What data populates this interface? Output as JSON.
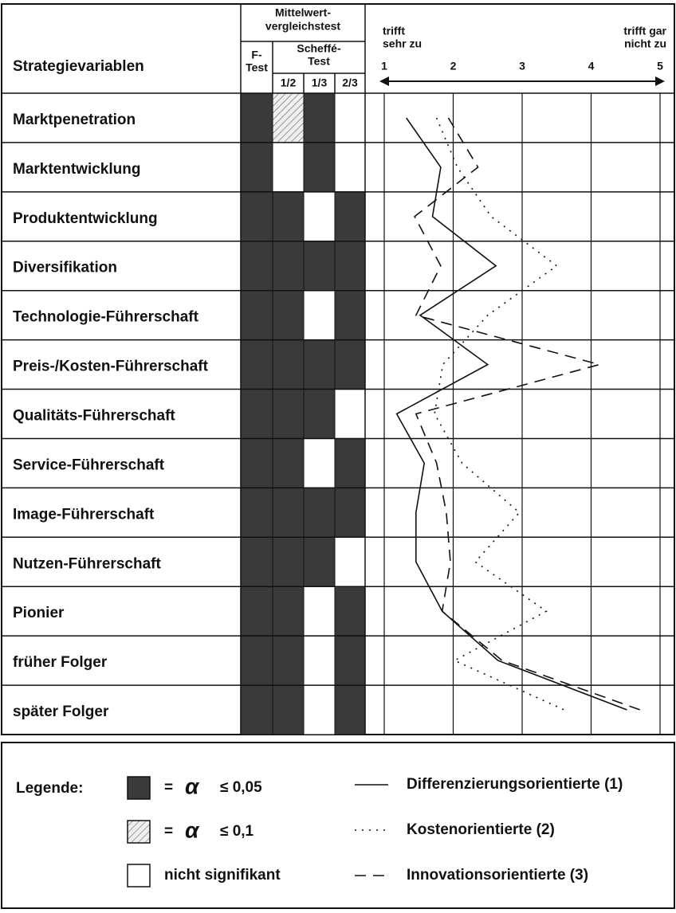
{
  "chart_data": {
    "type": "line",
    "row_header": "Strategievariablen",
    "categories": [
      "Marktpenetration",
      "Marktentwicklung",
      "Produktentwicklung",
      "Diversifikation",
      "Technologie-Führerschaft",
      "Preis-/Kosten-Führerschaft",
      "Qualitäts-Führerschaft",
      "Service-Führerschaft",
      "Image-Führerschaft",
      "Nutzen-Führerschaft",
      "Pionier",
      "früher Folger",
      "später Folger"
    ],
    "scale_left": [
      "trifft",
      "sehr zu"
    ],
    "scale_right": [
      "trifft gar",
      "nicht zu"
    ],
    "xlim": [
      1,
      5
    ],
    "xticks": [
      1,
      2,
      3,
      4,
      5
    ],
    "grid": true,
    "series": [
      {
        "name": "Differenzierungsorientierte (1)",
        "color": "#111111",
        "dash": "solid",
        "values": [
          1.32,
          1.82,
          1.7,
          2.62,
          1.52,
          2.5,
          1.18,
          1.58,
          1.46,
          1.46,
          1.84,
          2.65,
          4.52
        ]
      },
      {
        "name": "Kostenorientierte (2)",
        "color": "#111111",
        "dash": "dotted",
        "values": [
          1.76,
          2.06,
          2.55,
          3.5,
          2.5,
          1.85,
          1.73,
          2.13,
          2.96,
          2.32,
          3.35,
          2.02,
          3.61
        ]
      },
      {
        "name": "Innovationsorientierte (3)",
        "color": "#111111",
        "dash": "dashed",
        "values": [
          1.93,
          2.36,
          1.44,
          1.82,
          1.46,
          4.12,
          1.46,
          1.76,
          1.9,
          1.96,
          1.84,
          2.71,
          4.71
        ]
      }
    ]
  },
  "significance": {
    "title": [
      "Mittelwert-",
      "vergleichstest"
    ],
    "f_test": [
      "F-",
      "Test"
    ],
    "scheffe": [
      "Scheffé-",
      "Test"
    ],
    "pairs": [
      "1/2",
      "1/3",
      "2/3"
    ],
    "cells": [
      [
        0,
        1,
        0,
        2
      ],
      [
        0,
        2,
        0,
        2
      ],
      [
        0,
        0,
        2,
        0
      ],
      [
        0,
        0,
        0,
        0
      ],
      [
        0,
        0,
        2,
        0
      ],
      [
        0,
        0,
        0,
        0
      ],
      [
        0,
        0,
        0,
        2
      ],
      [
        0,
        0,
        2,
        0
      ],
      [
        0,
        0,
        0,
        0
      ],
      [
        0,
        0,
        0,
        2
      ],
      [
        0,
        0,
        2,
        0
      ],
      [
        0,
        0,
        2,
        0
      ],
      [
        0,
        0,
        2,
        0
      ]
    ]
  },
  "legend": {
    "title": "Legende:",
    "keys": [
      {
        "eq": "=",
        "alpha": "α",
        "label": "≤ 0,05"
      },
      {
        "eq": "=",
        "alpha": "α",
        "label": "≤ 0,1"
      },
      {
        "label": "nicht signifikant"
      }
    ]
  }
}
